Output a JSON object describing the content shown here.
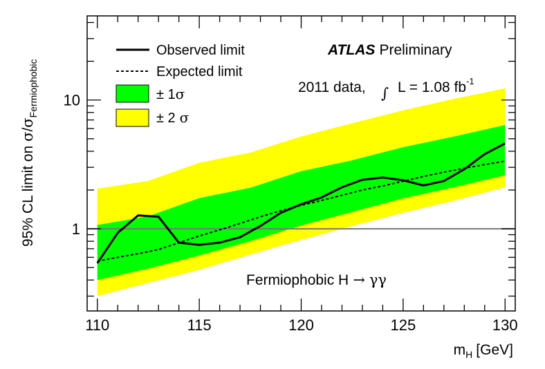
{
  "chart_data": {
    "type": "line",
    "title": "",
    "xlabel": "m",
    "xlabel_sub": "H",
    "xlabel_unit": "[GeV]",
    "ylabel": {
      "prefix": "95% CL limit on ",
      "sigma1": "σ",
      "slash": "/",
      "sigma2": "σ",
      "sub": "Fermiophobic"
    },
    "xlim": [
      109.5,
      130.5
    ],
    "ylim": [
      0.23,
      45
    ],
    "yscale": "log",
    "x_ticks": [
      "110",
      "115",
      "120",
      "125",
      "130"
    ],
    "x_tick_values": [
      110,
      115,
      120,
      125,
      130
    ],
    "y_ticks": [
      "1",
      "10"
    ],
    "y_tick_values": [
      1,
      10
    ],
    "reference_line": 1,
    "x": [
      110,
      111,
      112,
      113,
      114,
      115,
      116,
      117,
      118,
      119,
      120,
      121,
      122,
      123,
      124,
      125,
      126,
      127,
      128,
      129,
      130
    ],
    "series": [
      {
        "name": "Observed limit",
        "style": "solid",
        "values": [
          0.54,
          0.93,
          1.27,
          1.24,
          0.78,
          0.75,
          0.78,
          0.86,
          1.05,
          1.33,
          1.55,
          1.75,
          2.1,
          2.4,
          2.5,
          2.38,
          2.17,
          2.35,
          2.9,
          3.8,
          4.6
        ]
      },
      {
        "name": "Expected limit",
        "style": "dashed",
        "values": [
          0.56,
          0.6,
          0.64,
          0.69,
          0.78,
          0.88,
          0.98,
          1.1,
          1.24,
          1.38,
          1.52,
          1.66,
          1.82,
          2.0,
          2.15,
          2.34,
          2.55,
          2.75,
          2.95,
          3.15,
          3.35
        ]
      }
    ],
    "bands": [
      {
        "name": "± 2 σ",
        "color": "#ffff00",
        "x": [
          110,
          112.5,
          115,
          117.5,
          120,
          122.5,
          125,
          127.5,
          130
        ],
        "lower": [
          0.3,
          0.38,
          0.48,
          0.63,
          0.82,
          1.05,
          1.33,
          1.65,
          2.1
        ],
        "upper": [
          2.05,
          2.35,
          3.25,
          3.9,
          5.2,
          6.6,
          8.3,
          10.2,
          12.3
        ]
      },
      {
        "name": "± 1 σ",
        "color": "#00ff00",
        "x": [
          110,
          112.5,
          115,
          117.5,
          120,
          122.5,
          125,
          127.5,
          130
        ],
        "lower": [
          0.4,
          0.49,
          0.62,
          0.8,
          1.06,
          1.35,
          1.72,
          2.1,
          2.6
        ],
        "upper": [
          1.07,
          1.25,
          1.73,
          2.08,
          2.8,
          3.4,
          4.3,
          5.2,
          6.4
        ]
      }
    ],
    "legend": {
      "observed": "Observed limit",
      "expected": "Expected limit",
      "one_sigma": "± 1",
      "two_sigma": "± 2",
      "sigma": "σ"
    },
    "annotations": {
      "atlas": "ATLAS",
      "preliminary": "Preliminary",
      "data_label": "2011 data,",
      "integral": "∫",
      "lumi": "L = 1.08 fb",
      "lumi_exp": "-1",
      "process": "Fermiophobic H",
      "arrow": "→",
      "gammagamma": "γγ"
    },
    "legend_position": "top-left"
  }
}
